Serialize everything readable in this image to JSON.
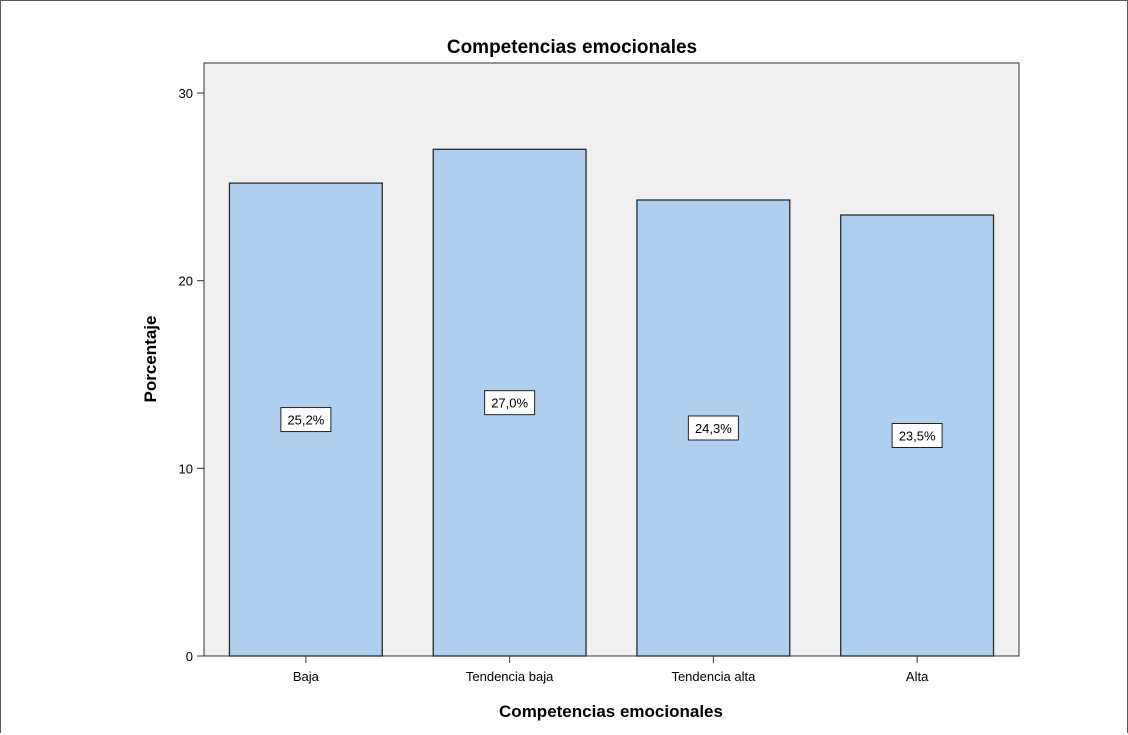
{
  "chart_data": {
    "type": "bar",
    "title": "Competencias emocionales",
    "xlabel": "Competencias emocionales",
    "ylabel": "Porcentaje",
    "categories": [
      "Baja",
      "Tendencia baja",
      "Tendencia alta",
      "Alta"
    ],
    "values": [
      25.2,
      27.0,
      24.3,
      23.5
    ],
    "data_labels": [
      "25,2%",
      "27,0%",
      "24,3%",
      "23,5%"
    ],
    "ylim": [
      0,
      31.6
    ],
    "yticks": [
      0,
      10,
      20,
      30
    ],
    "grid": false,
    "legend": "none",
    "colors": {
      "bar_fill": "#aecfee",
      "bar_stroke": "#2b2b2b",
      "plot_background": "#f0f0f0",
      "axis": "#333333",
      "text": "#000000"
    }
  }
}
